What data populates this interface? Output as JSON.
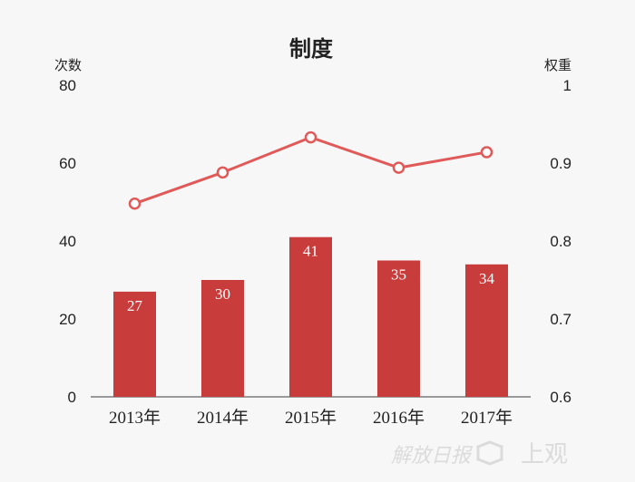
{
  "chart_data": {
    "type": "bar",
    "title": "制度",
    "ylabel": "次数",
    "y2label": "权重",
    "categories": [
      "2013年",
      "2014年",
      "2015年",
      "2016年",
      "2017年"
    ],
    "series": [
      {
        "type": "bar",
        "axis": "left",
        "values": [
          27,
          30,
          41,
          35,
          34
        ],
        "color": "#c93c3c"
      },
      {
        "type": "line",
        "axis": "right",
        "values": [
          0.848,
          0.888,
          0.933,
          0.894,
          0.914
        ],
        "color": "#e05a5a"
      }
    ],
    "ylim": [
      0,
      80
    ],
    "yticks": [
      "0",
      "20",
      "40",
      "60",
      "80"
    ],
    "y2lim": [
      0.6,
      1
    ],
    "y2ticks": [
      "0.6",
      "0.7",
      "0.8",
      "0.9",
      "1"
    ],
    "grid": false,
    "legend": "none"
  },
  "watermark": {
    "brand": "解放日报",
    "name": "上观"
  }
}
